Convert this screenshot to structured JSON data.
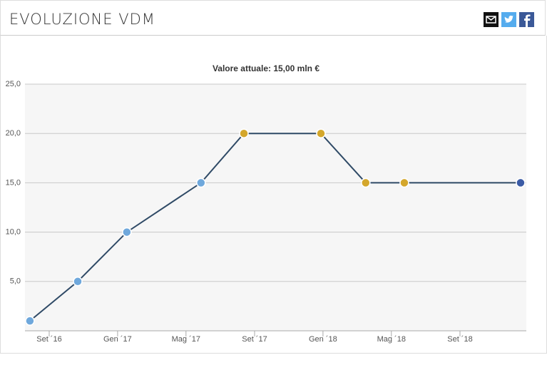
{
  "header": {
    "title": "EVOLUZIONE VDM"
  },
  "chart_data": {
    "type": "line",
    "subtitle": "Valore attuale: 15,00 mln €",
    "x": [
      2016.573,
      2016.806,
      2017.045,
      2017.406,
      2017.615,
      2017.99,
      2018.208,
      2018.396,
      2018.962
    ],
    "series": [
      {
        "color": "#2f4a66",
        "values": [
          1,
          5,
          10,
          15,
          20,
          20,
          15,
          15,
          15
        ],
        "marker_colors": [
          "#6fa8dc",
          "#6fa8dc",
          "#6fa8dc",
          "#6fa8dc",
          "#d4a72c",
          "#d4a72c",
          "#d4a72c",
          "#d4a72c",
          "#3b5ba5"
        ]
      }
    ],
    "xlim": [
      2016.549,
      2018.99
    ],
    "xticks": [
      {
        "value": 2016.667,
        "label": "Set ´16"
      },
      {
        "value": 2017,
        "label": "Gen ´17"
      },
      {
        "value": 2017.333,
        "label": "Mag ´17"
      },
      {
        "value": 2017.667,
        "label": "Set ´17"
      },
      {
        "value": 2018,
        "label": "Gen ´18"
      },
      {
        "value": 2018.333,
        "label": "Mag ´18"
      },
      {
        "value": 2018.667,
        "label": "Set ´18"
      }
    ],
    "ylim": [
      0,
      25
    ],
    "yticks": [
      {
        "value": 5,
        "label": "5,0"
      },
      {
        "value": 10,
        "label": "10,0"
      },
      {
        "value": 15,
        "label": "15,0"
      },
      {
        "value": 20,
        "label": "20,0"
      },
      {
        "value": 25,
        "label": "25,0"
      }
    ],
    "grid": true
  }
}
